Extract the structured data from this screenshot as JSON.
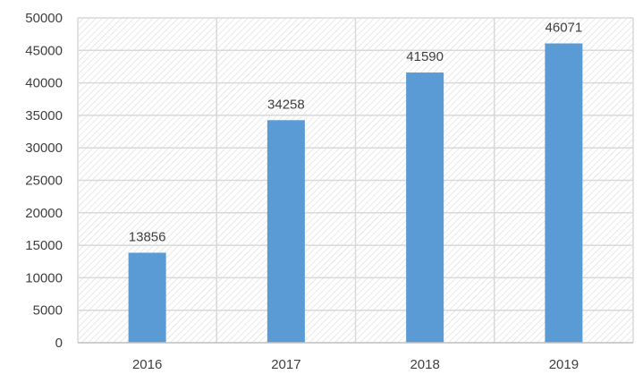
{
  "chart_data": {
    "type": "bar",
    "title": "",
    "xlabel": "",
    "ylabel": "",
    "categories": [
      "2016",
      "2017",
      "2018",
      "2019"
    ],
    "values": [
      13856,
      34258,
      41590,
      46071
    ],
    "data_labels": [
      "13856",
      "34258",
      "41590",
      "46071"
    ],
    "ylim": [
      0,
      50000
    ],
    "yticks": [
      0,
      5000,
      10000,
      15000,
      20000,
      25000,
      30000,
      35000,
      40000,
      45000,
      50000
    ],
    "ytick_labels": [
      "0",
      "5000",
      "10000",
      "15000",
      "20000",
      "25000",
      "30000",
      "35000",
      "40000",
      "45000",
      "50000"
    ],
    "grid": true,
    "plot_background": "hatched",
    "colors": {
      "bar": "#5B9BD5",
      "grid": "#d9d9d9",
      "hatch": "#d9d9d9",
      "axis": "#bfbfbf",
      "text": "#404040"
    }
  }
}
